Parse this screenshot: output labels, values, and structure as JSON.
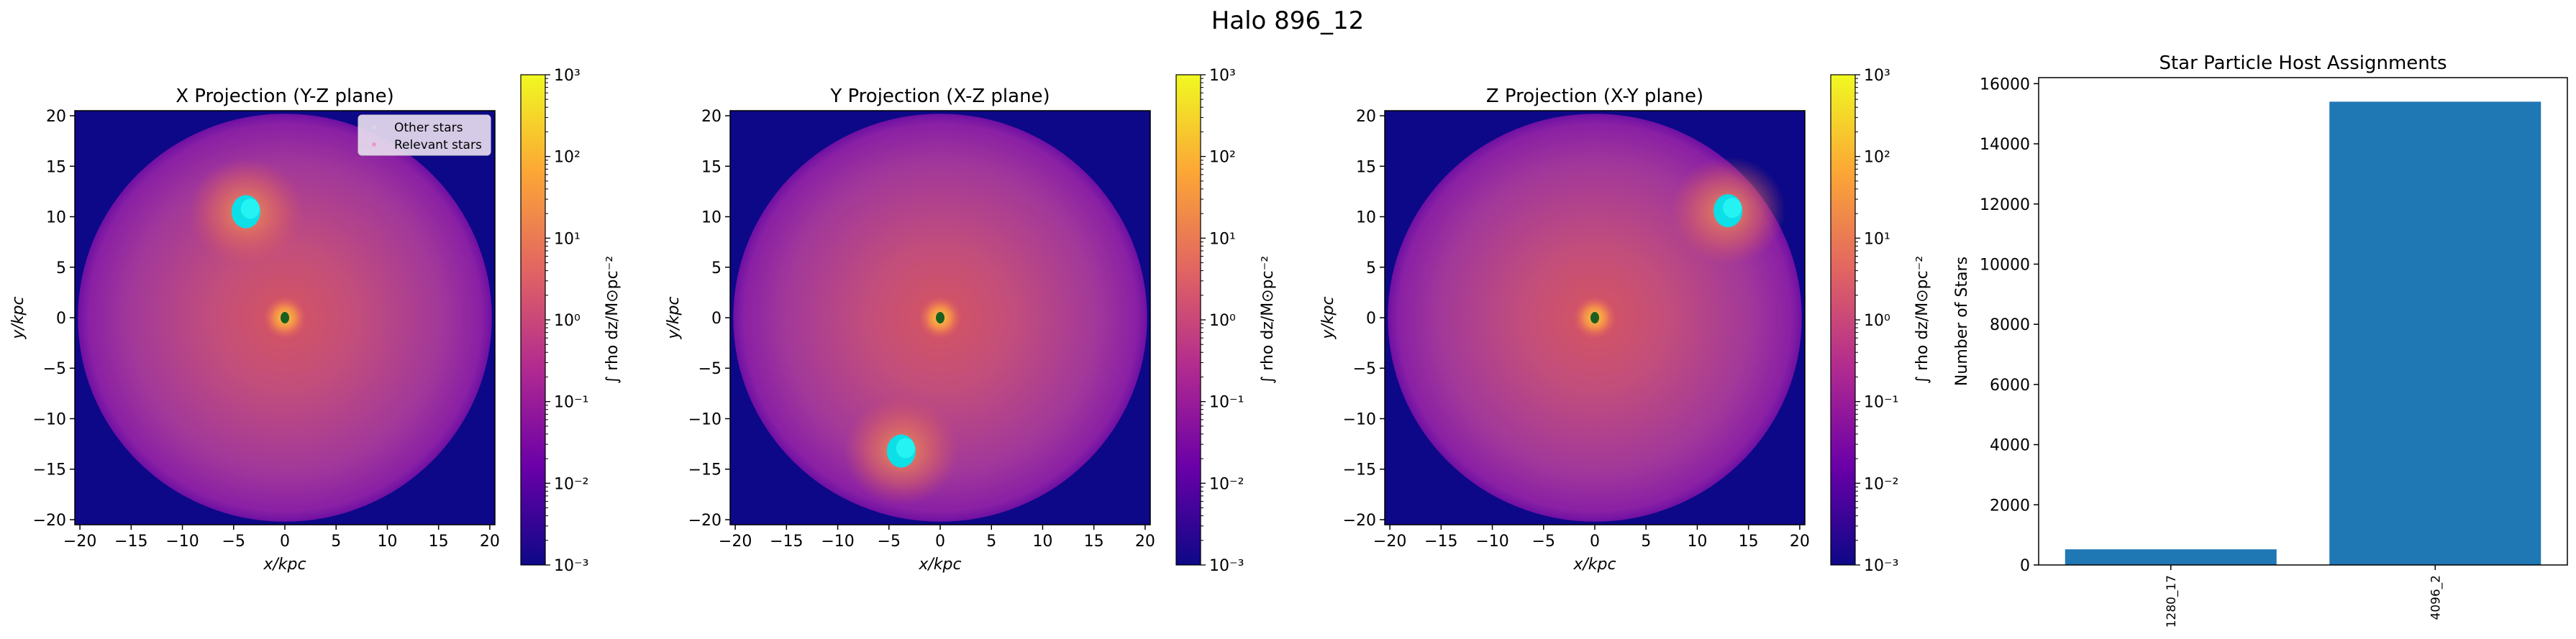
{
  "figure": {
    "title": "Halo 896_12"
  },
  "chart_data": [
    {
      "type": "heatmap",
      "title": "X Projection (Y-Z plane)",
      "xlabel": "x/kpc",
      "ylabel": "y/kpc",
      "xlim": [
        -20.5,
        20.5
      ],
      "ylim": [
        -20.5,
        20.5
      ],
      "xticks": [
        -20,
        -15,
        -10,
        -5,
        0,
        5,
        10,
        15,
        20
      ],
      "yticks": [
        -20,
        -15,
        -10,
        -5,
        0,
        5,
        10,
        15,
        20
      ],
      "colorbar": {
        "label": "∫ rho dz/M⊙pc⁻²",
        "scale": "log",
        "range": [
          0.001,
          1000
        ],
        "ticks": [
          -3,
          -2,
          -1,
          0,
          1,
          2,
          3
        ]
      },
      "colormap": [
        "#0d0887",
        "#6a00a8",
        "#b12a90",
        "#e16462",
        "#fca636",
        "#f0f921"
      ],
      "legend": {
        "placement": "top-right",
        "entries": [
          "Other stars",
          "Relevant stars"
        ]
      },
      "features": [
        {
          "kind": "star-clump",
          "x": -3.8,
          "y": 10.5,
          "color": "#00e5ee"
        },
        {
          "kind": "central-core",
          "x": 0,
          "y": 0
        }
      ]
    },
    {
      "type": "heatmap",
      "title": "Y Projection (X-Z plane)",
      "xlabel": "x/kpc",
      "ylabel": "y/kpc",
      "xlim": [
        -20.5,
        20.5
      ],
      "ylim": [
        -20.5,
        20.5
      ],
      "xticks": [
        -20,
        -15,
        -10,
        -5,
        0,
        5,
        10,
        15,
        20
      ],
      "yticks": [
        -20,
        -15,
        -10,
        -5,
        0,
        5,
        10,
        15,
        20
      ],
      "colorbar": {
        "label": "∫ rho dz/M⊙pc⁻²",
        "scale": "log",
        "range": [
          0.001,
          1000
        ],
        "ticks": [
          -3,
          -2,
          -1,
          0,
          1,
          2,
          3
        ]
      },
      "colormap": [
        "#0d0887",
        "#6a00a8",
        "#b12a90",
        "#e16462",
        "#fca636",
        "#f0f921"
      ],
      "features": [
        {
          "kind": "star-clump",
          "x": -3.8,
          "y": -13.2,
          "color": "#00e5ee"
        },
        {
          "kind": "central-core",
          "x": 0,
          "y": 0
        }
      ]
    },
    {
      "type": "heatmap",
      "title": "Z Projection (X-Y plane)",
      "xlabel": "x/kpc",
      "ylabel": "y/kpc",
      "xlim": [
        -20.5,
        20.5
      ],
      "ylim": [
        -20.5,
        20.5
      ],
      "xticks": [
        -20,
        -15,
        -10,
        -5,
        0,
        5,
        10,
        15,
        20
      ],
      "yticks": [
        -20,
        -15,
        -10,
        -5,
        0,
        5,
        10,
        15,
        20
      ],
      "colorbar": {
        "label": "∫ rho dz/M⊙pc⁻²",
        "scale": "log",
        "range": [
          0.001,
          1000
        ],
        "ticks": [
          -3,
          -2,
          -1,
          0,
          1,
          2,
          3
        ]
      },
      "colormap": [
        "#0d0887",
        "#6a00a8",
        "#b12a90",
        "#e16462",
        "#fca636",
        "#f0f921"
      ],
      "features": [
        {
          "kind": "star-clump",
          "x": 13.0,
          "y": 10.6,
          "color": "#00e5ee"
        },
        {
          "kind": "central-core",
          "x": 0,
          "y": 0
        }
      ]
    },
    {
      "type": "bar",
      "title": "Star Particle Host Assignments",
      "xlabel": "",
      "ylabel": "Number of Stars",
      "categories": [
        "1280_17",
        "4096_2"
      ],
      "values": [
        520,
        15400
      ],
      "ylim": [
        0,
        16200
      ],
      "yticks": [
        0,
        2000,
        4000,
        6000,
        8000,
        10000,
        12000,
        14000,
        16000
      ],
      "color": "#1f77b4"
    }
  ]
}
